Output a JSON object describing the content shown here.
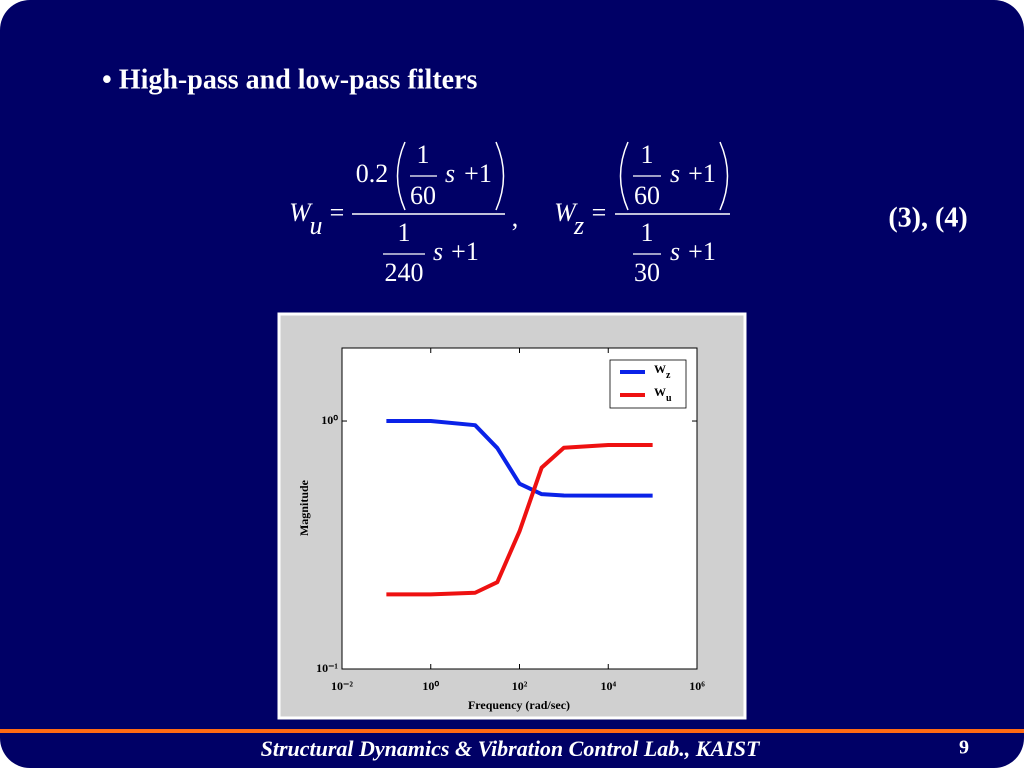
{
  "slide": {
    "bullet": "• High-pass and low-pass filters",
    "equations": [
      {
        "lhs": "W",
        "subscript": "u",
        "equals": "=",
        "coefficient": "0.2",
        "numerator": {
          "frac_top": "1",
          "frac_bottom": "60",
          "variable": "s",
          "rest": "+1"
        },
        "denominator": {
          "frac_top": "1",
          "frac_bottom": "240",
          "variable": "s",
          "rest": "+1"
        },
        "separator": ","
      },
      {
        "lhs": "W",
        "subscript": "z",
        "equals": "=",
        "numerator": {
          "frac_top": "1",
          "frac_bottom": "60",
          "variable": "s",
          "rest": "+1"
        },
        "denominator": {
          "frac_top": "1",
          "frac_bottom": "30",
          "variable": "s",
          "rest": "+1"
        }
      }
    ],
    "equation_number": "(3), (4)",
    "footer": "Structural Dynamics & Vibration Control Lab., KAIST",
    "page_number": "9"
  },
  "chart_data": {
    "type": "line",
    "xlabel": "Frequency (rad/sec)",
    "ylabel": "Magnitude",
    "xscale": "log",
    "yscale": "log",
    "x": [
      0.1,
      1,
      10,
      31.6,
      100,
      316,
      1000,
      10000,
      100000
    ],
    "series": [
      {
        "name": "Wz",
        "color": "#0a22e8",
        "values": [
          1,
          1,
          0.962,
          0.778,
          0.559,
          0.507,
          0.501,
          0.5,
          0.5
        ]
      },
      {
        "name": "Wu",
        "color": "#ee1111",
        "values": [
          0.2,
          0.2,
          0.203,
          0.224,
          0.359,
          0.649,
          0.78,
          0.8,
          0.8
        ]
      }
    ],
    "xlim": [
      0.01,
      1000000
    ],
    "ylim": [
      0.1,
      1.97
    ],
    "xticks": [
      {
        "value": 0.01,
        "label": "10⁻²"
      },
      {
        "value": 1,
        "label": "10⁰"
      },
      {
        "value": 100,
        "label": "10²"
      },
      {
        "value": 10000,
        "label": "10⁴"
      },
      {
        "value": 1000000,
        "label": "10⁶"
      }
    ],
    "yticks": [
      {
        "value": 0.1,
        "label": "10⁻¹"
      },
      {
        "value": 1,
        "label": "10⁰"
      }
    ],
    "grid": false,
    "legend": "top-right"
  }
}
